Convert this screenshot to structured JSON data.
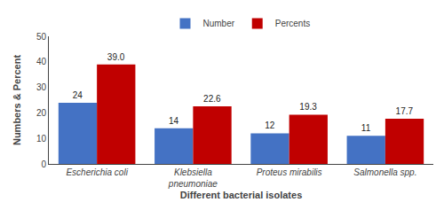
{
  "chart_data": {
    "type": "bar",
    "categories": [
      "Escherichia coli",
      "Klebsiella\npneumoniae",
      "Proteus mirabilis",
      "Salmonella spp."
    ],
    "series": [
      {
        "name": "Number",
        "color": "#4472C4",
        "values": [
          24,
          14,
          12,
          11
        ]
      },
      {
        "name": "Percents",
        "color": "#C00000",
        "values": [
          39.0,
          22.6,
          19.3,
          17.7
        ],
        "value_labels": [
          "39.0",
          "22.6",
          "19.3",
          "17.7"
        ]
      }
    ],
    "xlabel": "Different bacterial isolates",
    "ylabel": "Numbers & Percent",
    "ylim": [
      0,
      50
    ],
    "yticks": [
      0,
      10,
      20,
      30,
      40,
      50
    ],
    "grid": false,
    "legend": "top",
    "data_labels": true
  }
}
